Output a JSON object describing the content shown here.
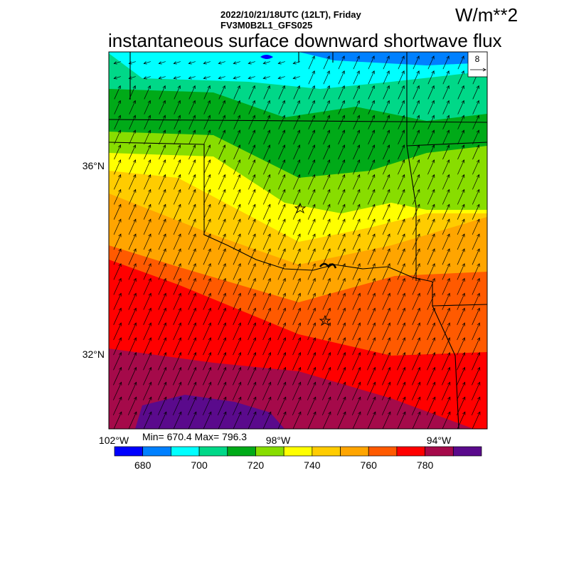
{
  "header": {
    "line1": "2022/10/21/18UTC (12LT), Friday",
    "line2": "FV3M0B2L1_GFS025",
    "title": "instantaneous surface downward shortwave flux",
    "units": "W/m**2"
  },
  "map": {
    "lat_labels": [
      "36°N",
      "32°N"
    ],
    "lon_labels": [
      "102°W",
      "98°W",
      "94°W"
    ],
    "stats": "Min= 670.4 Max= 796.3",
    "reference_vector": {
      "label": "8",
      "icon": "arrow-right-icon"
    },
    "markers": [
      "star-icon",
      "star-icon"
    ]
  },
  "colorbar": {
    "colors": [
      "#0000FF",
      "#0080FF",
      "#00FFFF",
      "#00D888",
      "#00AA18",
      "#88DD00",
      "#FFFF00",
      "#FFCC00",
      "#FFA500",
      "#FF5A00",
      "#FF0000",
      "#A50A4A",
      "#5A0A8C"
    ],
    "labels": [
      "680",
      "700",
      "720",
      "740",
      "760",
      "780"
    ]
  }
}
